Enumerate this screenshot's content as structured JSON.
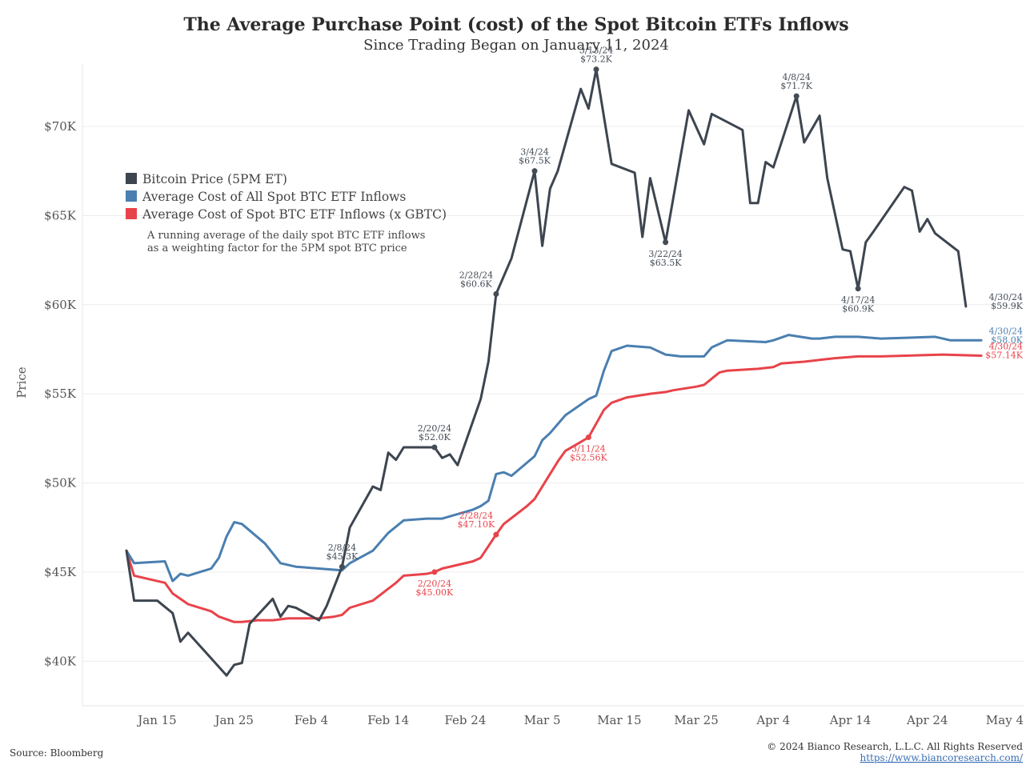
{
  "chart_data": {
    "type": "line",
    "title": "The Average Purchase Point (cost) of the Spot Bitcoin ETFs Inflows",
    "subtitle": "Since Trading Began on January 11, 2024",
    "ylabel": "Price",
    "xlabel": "",
    "ylim": [
      37500,
      73500
    ],
    "xlim": [
      0,
      114
    ],
    "x_ticks": [
      {
        "x": 4,
        "label": "Jan 15"
      },
      {
        "x": 14,
        "label": "Jan 25"
      },
      {
        "x": 24,
        "label": "Feb 4"
      },
      {
        "x": 34,
        "label": "Feb 14"
      },
      {
        "x": 44,
        "label": "Feb 24"
      },
      {
        "x": 54,
        "label": "Mar 5"
      },
      {
        "x": 64,
        "label": "Mar 15"
      },
      {
        "x": 74,
        "label": "Mar 25"
      },
      {
        "x": 84,
        "label": "Apr 4"
      },
      {
        "x": 94,
        "label": "Apr 14"
      },
      {
        "x": 104,
        "label": "Apr 24"
      },
      {
        "x": 114,
        "label": "May 4"
      }
    ],
    "y_ticks": [
      {
        "value": 40000,
        "label": "$40K"
      },
      {
        "value": 45000,
        "label": "$45K"
      },
      {
        "value": 50000,
        "label": "$50K"
      },
      {
        "value": 55000,
        "label": "$55K"
      },
      {
        "value": 60000,
        "label": "$60K"
      },
      {
        "value": 65000,
        "label": "$65K"
      },
      {
        "value": 70000,
        "label": "$70K"
      }
    ],
    "grid": true,
    "legend_position": "top-left",
    "legend_note": [
      "A running average of the daily spot BTC ETF inflows",
      "as a weighting factor for the 5PM spot BTC price"
    ],
    "series": [
      {
        "name": "Bitcoin Price (5PM ET)",
        "color": "#3d4550",
        "points": [
          [
            0,
            46200
          ],
          [
            1,
            43400
          ],
          [
            4,
            43400
          ],
          [
            6,
            42700
          ],
          [
            7,
            41100
          ],
          [
            8,
            41600
          ],
          [
            13,
            39200
          ],
          [
            14,
            39800
          ],
          [
            15,
            39900
          ],
          [
            16,
            42100
          ],
          [
            19,
            43500
          ],
          [
            20,
            42500
          ],
          [
            21,
            43100
          ],
          [
            22,
            43000
          ],
          [
            25,
            42300
          ],
          [
            26,
            43100
          ],
          [
            28,
            45300
          ],
          [
            29,
            47500
          ],
          [
            32,
            49800
          ],
          [
            33,
            49600
          ],
          [
            34,
            51700
          ],
          [
            35,
            51300
          ],
          [
            36,
            52000
          ],
          [
            40,
            52000
          ],
          [
            41,
            51400
          ],
          [
            42,
            51600
          ],
          [
            43,
            51000
          ],
          [
            46,
            54700
          ],
          [
            47,
            56800
          ],
          [
            48,
            60600
          ],
          [
            50,
            62600
          ],
          [
            53,
            67500
          ],
          [
            54,
            63300
          ],
          [
            55,
            66500
          ],
          [
            56,
            67500
          ],
          [
            59,
            72100
          ],
          [
            60,
            71000
          ],
          [
            61,
            73200
          ],
          [
            63,
            67900
          ],
          [
            66,
            67400
          ],
          [
            67,
            63800
          ],
          [
            68,
            67100
          ],
          [
            70,
            63500
          ],
          [
            73,
            70900
          ],
          [
            75,
            69000
          ],
          [
            76,
            70700
          ],
          [
            80,
            69800
          ],
          [
            81,
            65700
          ],
          [
            82,
            65700
          ],
          [
            83,
            68000
          ],
          [
            84,
            67700
          ],
          [
            87,
            71700
          ],
          [
            88,
            69100
          ],
          [
            90,
            70600
          ],
          [
            91,
            67100
          ],
          [
            93,
            63100
          ],
          [
            94,
            63000
          ],
          [
            95,
            60900
          ],
          [
            96,
            63500
          ],
          [
            97,
            64100
          ],
          [
            101,
            66600
          ],
          [
            102,
            66400
          ],
          [
            103,
            64100
          ],
          [
            104,
            64800
          ],
          [
            105,
            64000
          ],
          [
            108,
            63000
          ],
          [
            109,
            59900
          ]
        ]
      },
      {
        "name": "Average Cost of All Spot BTC ETF Inflows",
        "color": "#4a7fb0",
        "points": [
          [
            0,
            46200
          ],
          [
            1,
            45500
          ],
          [
            5,
            45600
          ],
          [
            6,
            44500
          ],
          [
            7,
            44900
          ],
          [
            8,
            44800
          ],
          [
            11,
            45200
          ],
          [
            12,
            45800
          ],
          [
            13,
            47000
          ],
          [
            14,
            47800
          ],
          [
            15,
            47700
          ],
          [
            18,
            46600
          ],
          [
            20,
            45500
          ],
          [
            22,
            45300
          ],
          [
            25,
            45200
          ],
          [
            28,
            45100
          ],
          [
            29,
            45500
          ],
          [
            32,
            46200
          ],
          [
            34,
            47200
          ],
          [
            36,
            47900
          ],
          [
            39,
            48000
          ],
          [
            41,
            48000
          ],
          [
            45,
            48500
          ],
          [
            46,
            48700
          ],
          [
            47,
            49000
          ],
          [
            48,
            50500
          ],
          [
            49,
            50600
          ],
          [
            50,
            50400
          ],
          [
            53,
            51500
          ],
          [
            54,
            52400
          ],
          [
            55,
            52800
          ],
          [
            57,
            53800
          ],
          [
            60,
            54700
          ],
          [
            61,
            54900
          ],
          [
            62,
            56300
          ],
          [
            63,
            57400
          ],
          [
            65,
            57700
          ],
          [
            68,
            57600
          ],
          [
            70,
            57200
          ],
          [
            72,
            57100
          ],
          [
            75,
            57100
          ],
          [
            76,
            57600
          ],
          [
            78,
            58000
          ],
          [
            83,
            57900
          ],
          [
            84,
            58000
          ],
          [
            86,
            58300
          ],
          [
            89,
            58100
          ],
          [
            90,
            58100
          ],
          [
            92,
            58200
          ],
          [
            95,
            58200
          ],
          [
            98,
            58100
          ],
          [
            105,
            58200
          ],
          [
            106,
            58100
          ],
          [
            107,
            58000
          ],
          [
            111,
            58000
          ]
        ]
      },
      {
        "name": "Average Cost of Spot BTC ETF Inflows (x GBTC)",
        "color": "#e8434a",
        "points": [
          [
            0,
            46200
          ],
          [
            1,
            44800
          ],
          [
            5,
            44400
          ],
          [
            6,
            43800
          ],
          [
            8,
            43200
          ],
          [
            11,
            42800
          ],
          [
            12,
            42500
          ],
          [
            14,
            42200
          ],
          [
            15,
            42200
          ],
          [
            17,
            42300
          ],
          [
            19,
            42300
          ],
          [
            21,
            42400
          ],
          [
            25,
            42400
          ],
          [
            27,
            42500
          ],
          [
            28,
            42600
          ],
          [
            29,
            43000
          ],
          [
            32,
            43400
          ],
          [
            35,
            44400
          ],
          [
            36,
            44800
          ],
          [
            39,
            44900
          ],
          [
            40,
            45000
          ],
          [
            41,
            45200
          ],
          [
            45,
            45600
          ],
          [
            46,
            45800
          ],
          [
            48,
            47100
          ],
          [
            49,
            47700
          ],
          [
            52,
            48700
          ],
          [
            53,
            49100
          ],
          [
            56,
            51200
          ],
          [
            57,
            51800
          ],
          [
            59,
            52300
          ],
          [
            60,
            52560
          ],
          [
            62,
            54100
          ],
          [
            63,
            54500
          ],
          [
            65,
            54800
          ],
          [
            68,
            55000
          ],
          [
            70,
            55100
          ],
          [
            71,
            55200
          ],
          [
            74,
            55400
          ],
          [
            75,
            55500
          ],
          [
            77,
            56200
          ],
          [
            78,
            56300
          ],
          [
            82,
            56400
          ],
          [
            84,
            56500
          ],
          [
            85,
            56700
          ],
          [
            88,
            56800
          ],
          [
            90,
            56900
          ],
          [
            92,
            57000
          ],
          [
            95,
            57100
          ],
          [
            98,
            57100
          ],
          [
            106,
            57200
          ],
          [
            111,
            57140
          ]
        ]
      }
    ],
    "annotations": [
      {
        "series": 0,
        "x": 28,
        "y": 45300,
        "date": "2/8/24",
        "value": "$45.3K",
        "pos": "above"
      },
      {
        "series": 0,
        "x": 40,
        "y": 52000,
        "date": "2/20/24",
        "value": "$52.0K",
        "pos": "above"
      },
      {
        "series": 0,
        "x": 48,
        "y": 60600,
        "date": "2/28/24",
        "value": "$60.6K",
        "pos": "aboveleft"
      },
      {
        "series": 0,
        "x": 53,
        "y": 67500,
        "date": "3/4/24",
        "value": "$67.5K",
        "pos": "above"
      },
      {
        "series": 0,
        "x": 61,
        "y": 73200,
        "date": "3/13/24",
        "value": "$73.2K",
        "pos": "above"
      },
      {
        "series": 0,
        "x": 70,
        "y": 63500,
        "date": "3/22/24",
        "value": "$63.5K",
        "pos": "below"
      },
      {
        "series": 0,
        "x": 87,
        "y": 71700,
        "date": "4/8/24",
        "value": "$71.7K",
        "pos": "above"
      },
      {
        "series": 0,
        "x": 95,
        "y": 60900,
        "date": "4/17/24",
        "value": "$60.9K",
        "pos": "below"
      },
      {
        "series": 0,
        "x": 109,
        "y": 59900,
        "date": "4/30/24",
        "value": "$59.9K",
        "pos": "right"
      },
      {
        "series": 1,
        "x": 111,
        "y": 58000,
        "date": "4/30/24",
        "value": "$58.0K",
        "pos": "right"
      },
      {
        "series": 2,
        "x": 48,
        "y": 47100,
        "date": "2/28/24",
        "value": "$47.10K",
        "pos": "aboveleft"
      },
      {
        "series": 2,
        "x": 40,
        "y": 45000,
        "date": "2/20/24",
        "value": "$45.00K",
        "pos": "below"
      },
      {
        "series": 2,
        "x": 60,
        "y": 52560,
        "date": "3/11/24",
        "value": "$52.56K",
        "pos": "below"
      },
      {
        "series": 2,
        "x": 111,
        "y": 57140,
        "date": "4/30/24",
        "value": "$57.14K",
        "pos": "right"
      }
    ]
  },
  "footer": {
    "source": "Source: Bloomberg",
    "copyright": "© 2024 Bianco Research, L.L.C. All Rights Reserved",
    "url": "https://www.biancoresearch.com/"
  }
}
